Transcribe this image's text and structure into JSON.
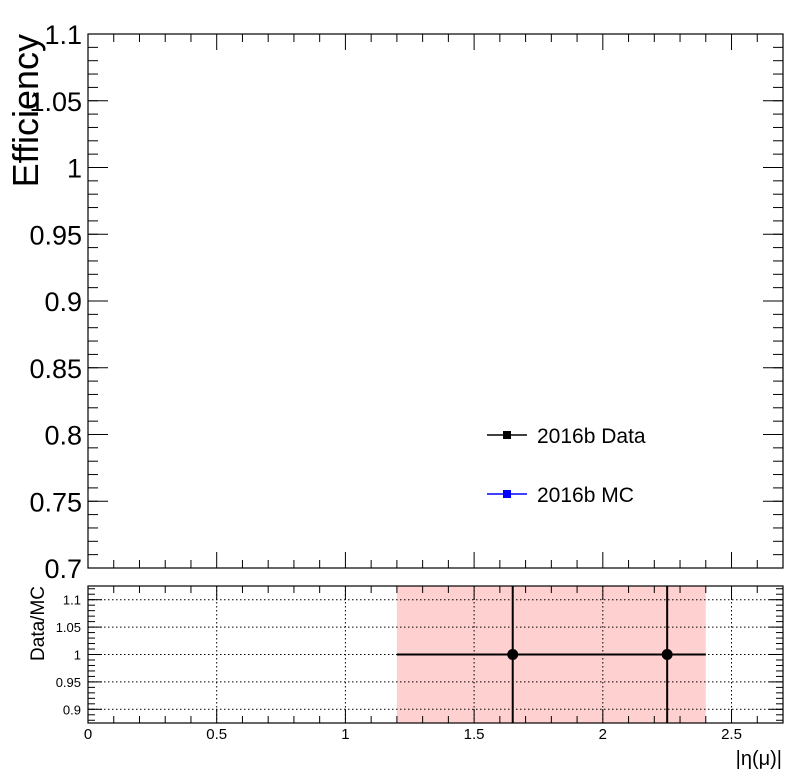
{
  "chart_data": [
    {
      "type": "scatter",
      "panel": "main",
      "title": "",
      "xlabel": "",
      "ylabel": "Efficiency",
      "xlim": [
        0,
        2.7
      ],
      "ylim": [
        0.7,
        1.1
      ],
      "y_tick_labels": [
        "1.1",
        "1.05",
        "1",
        "0.95",
        "0.9",
        "0.85",
        "0.8",
        "0.75",
        "0.7"
      ],
      "grid": false,
      "legend_position": "lower-right",
      "series": [
        {
          "name": "2016b Data",
          "color": "#000000",
          "points": []
        },
        {
          "name": "2016b MC",
          "color": "#0000ff",
          "points": []
        }
      ]
    },
    {
      "type": "scatter",
      "panel": "ratio",
      "title": "",
      "xlabel": "|η(μ)|",
      "ylabel": "Data/MC",
      "xlim": [
        0,
        2.7
      ],
      "ylim": [
        0.875,
        1.125
      ],
      "x_tick_labels": [
        "0",
        "0.5",
        "1",
        "1.5",
        "2",
        "2.5"
      ],
      "y_tick_labels": [
        "1.1",
        "1.05",
        "1",
        "0.95",
        "0.9"
      ],
      "grid": true,
      "uncertainty_band": {
        "x": [
          1.2,
          2.4
        ],
        "y": [
          0.875,
          1.125
        ],
        "color": "#ffd0d0"
      },
      "series": [
        {
          "name": "",
          "color": "#000000",
          "points": [
            {
              "x": 1.65,
              "y": 1.0,
              "xerr": [
                0.45,
                0.75
              ],
              "yerr": [
                0.2,
                0.2
              ]
            },
            {
              "x": 2.25,
              "y": 1.0,
              "xerr": [
                1.05,
                0.15
              ],
              "yerr": [
                0.2,
                0.2
              ]
            }
          ]
        }
      ]
    }
  ]
}
